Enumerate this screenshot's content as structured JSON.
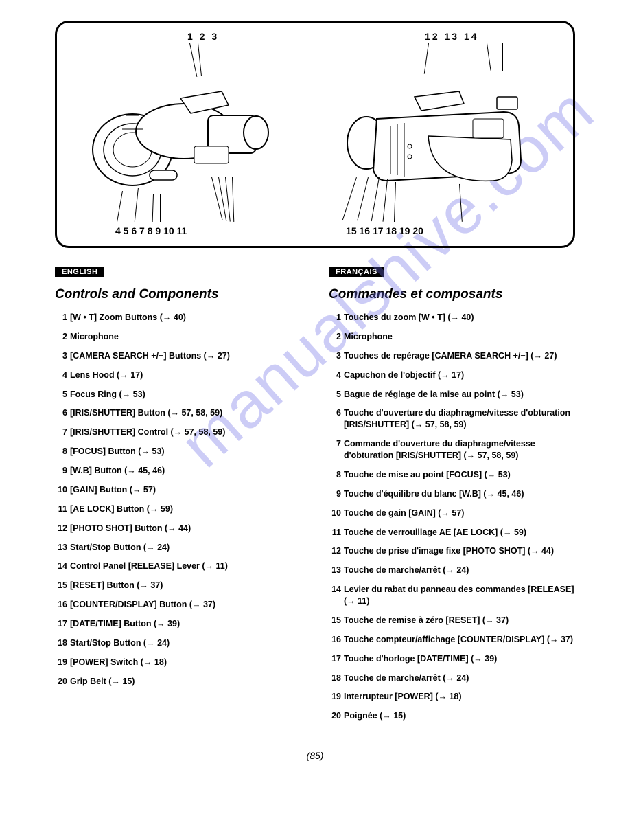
{
  "diagram": {
    "left": {
      "top_numbers": "1 2  3",
      "bottom_numbers": "4   5    6 7              8  9 10 11"
    },
    "right": {
      "top_numbers": "12        13 14",
      "bottom_numbers": "15 16 17 18 19            20"
    }
  },
  "english": {
    "badge": "ENGLISH",
    "title": "Controls and Components",
    "items": [
      "[W • T] Zoom Buttons (→ 40)",
      "Microphone",
      "[CAMERA SEARCH +/−] Buttons (→ 27)",
      "Lens Hood (→ 17)",
      "Focus Ring (→ 53)",
      "[IRIS/SHUTTER] Button (→ 57, 58, 59)",
      "[IRIS/SHUTTER] Control (→ 57, 58, 59)",
      "[FOCUS] Button (→ 53)",
      "[W.B] Button (→ 45, 46)",
      "[GAIN] Button (→ 57)",
      "[AE LOCK] Button (→ 59)",
      "[PHOTO SHOT] Button (→ 44)",
      "Start/Stop Button (→ 24)",
      "Control Panel [RELEASE] Lever (→ 11)",
      "[RESET] Button (→ 37)",
      "[COUNTER/DISPLAY] Button (→ 37)",
      "[DATE/TIME] Button (→ 39)",
      "Start/Stop Button (→ 24)",
      "[POWER] Switch (→ 18)",
      "Grip Belt (→ 15)"
    ]
  },
  "french": {
    "badge": "FRANÇAIS",
    "title": "Commandes et composants",
    "items": [
      "Touches du zoom [W • T] (→ 40)",
      "Microphone",
      "Touches de repérage [CAMERA SEARCH +/−] (→ 27)",
      "Capuchon de l'objectif (→ 17)",
      "Bague de réglage de la mise au point (→ 53)",
      "Touche d'ouverture du diaphragme/vitesse d'obturation [IRIS/SHUTTER] (→ 57, 58, 59)",
      "Commande d'ouverture du diaphragme/vitesse d'obturation [IRIS/SHUTTER] (→ 57, 58, 59)",
      "Touche de mise au point [FOCUS] (→ 53)",
      "Touche d'équilibre du blanc [W.B] (→ 45, 46)",
      "Touche de gain [GAIN] (→ 57)",
      "Touche de verrouillage AE [AE LOCK] (→ 59)",
      "Touche de prise d'image fixe [PHOTO SHOT] (→ 44)",
      "Touche de marche/arrêt (→ 24)",
      "Levier du rabat du panneau des commandes [RELEASE] (→ 11)",
      "Touche de remise à zéro [RESET] (→ 37)",
      "Touche compteur/affichage [COUNTER/DISPLAY] (→ 37)",
      "Touche d'horloge [DATE/TIME] (→ 39)",
      "Touche de marche/arrêt (→ 24)",
      "Interrupteur [POWER] (→ 18)",
      "Poignée (→ 15)"
    ]
  },
  "page_number": "(85)",
  "watermark": "manualshive.com"
}
